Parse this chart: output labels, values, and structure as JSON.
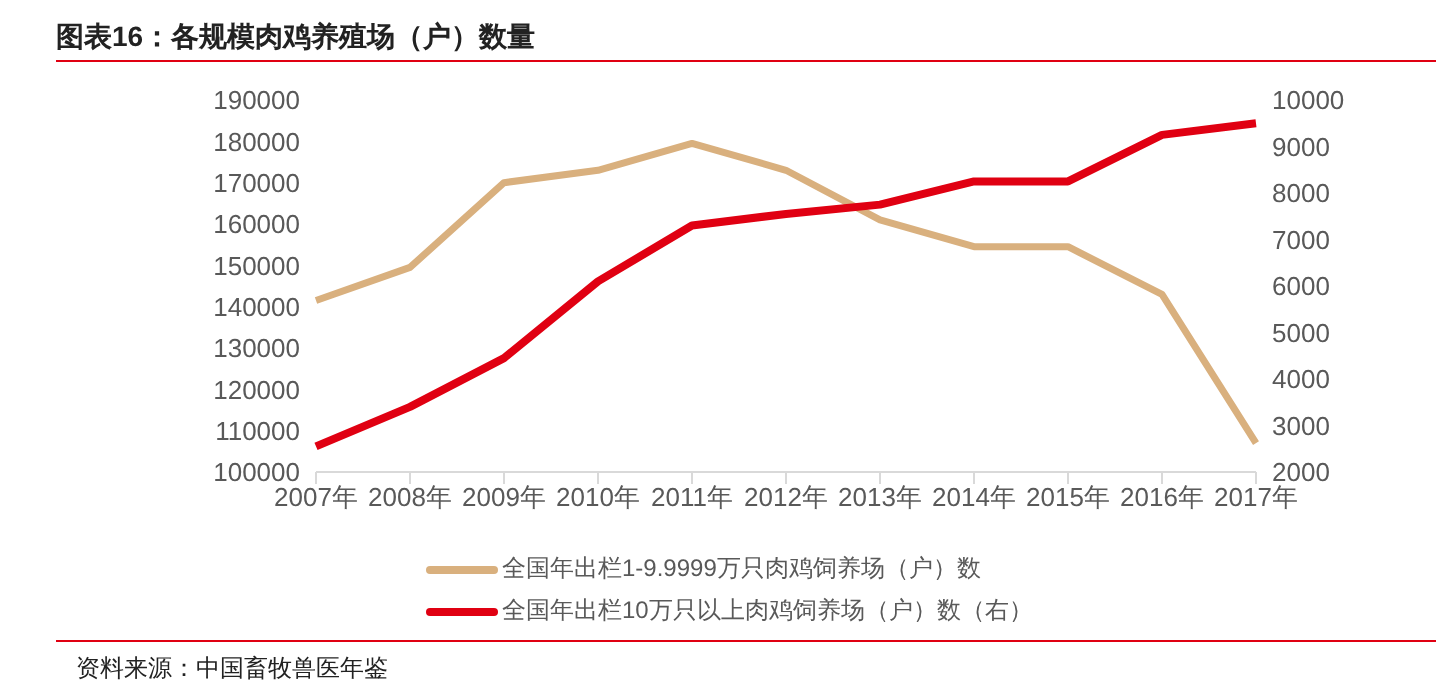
{
  "chart_data": {
    "type": "line",
    "title": "图表16：各规模肉鸡养殖场（户）数量",
    "categories": [
      "2007年",
      "2008年",
      "2009年",
      "2010年",
      "2011年",
      "2012年",
      "2013年",
      "2014年",
      "2015年",
      "2016年",
      "2017年"
    ],
    "series": [
      {
        "name": "全国年出栏1-9.9999万只肉鸡饲养场（户）数",
        "color": "#d9b07e",
        "values": [
          141500,
          149500,
          170000,
          173000,
          179500,
          173000,
          161000,
          154500,
          154500,
          143000,
          107000
        ]
      },
      {
        "name": "全国年出栏10万只以上肉鸡饲养场（户）数（右）",
        "color": "#e00012",
        "axis": "y2",
        "values": [
          2550,
          3400,
          4450,
          6100,
          7300,
          7550,
          7750,
          8250,
          8250,
          9250,
          9500
        ]
      }
    ],
    "ylim": [
      100000,
      190000
    ],
    "yticks": [
      100000,
      110000,
      120000,
      130000,
      140000,
      150000,
      160000,
      170000,
      180000,
      190000
    ],
    "y2lim": [
      2000,
      10000
    ],
    "y2ticks": [
      2000,
      3000,
      4000,
      5000,
      6000,
      7000,
      8000,
      9000,
      10000
    ],
    "legend": "bottom",
    "marker": "none",
    "line_style": "solid",
    "grid": false,
    "annotations": [
      "资料来源：中国畜牧兽医年鉴"
    ]
  }
}
